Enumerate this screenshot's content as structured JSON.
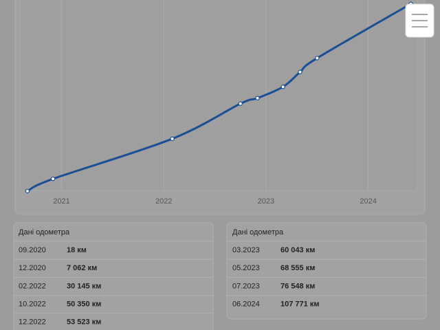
{
  "chart_data": {
    "type": "line",
    "x": [
      "09.2020",
      "12.2020",
      "02.2022",
      "10.2022",
      "12.2022",
      "03.2023",
      "05.2023",
      "07.2023",
      "06.2024"
    ],
    "values": [
      18,
      7062,
      30145,
      50350,
      53523,
      60043,
      68555,
      76548,
      107771
    ],
    "value_labels": [
      "18 км",
      "7 062 км",
      "30 145 км",
      "50 350 км",
      "53 523 км",
      "60 043 км",
      "68 555 км",
      "76 548 км",
      "107 771 км"
    ],
    "color": "#1a4f94",
    "xlim": [
      2020.6,
      2024.48
    ],
    "xticks": [
      2021,
      2022,
      2023,
      2024
    ],
    "ylim": [
      0,
      110000
    ],
    "grid": true
  },
  "tables": [
    {
      "title": "Дані одометра",
      "rows": [
        0,
        1,
        2,
        3,
        4
      ]
    },
    {
      "title": "Дані одометра",
      "rows": [
        5,
        6,
        7,
        8
      ]
    }
  ]
}
